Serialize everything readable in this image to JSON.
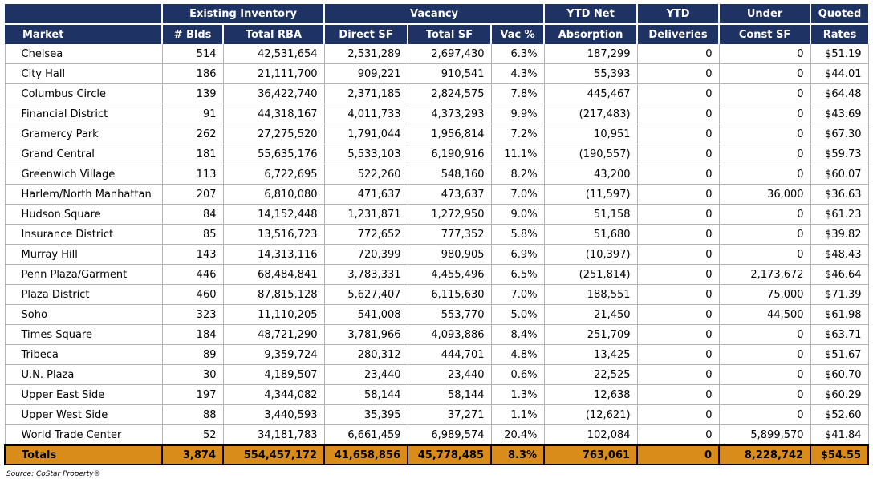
{
  "header": {
    "groups": [
      "Existing Inventory",
      "Vacancy",
      "YTD Net",
      "YTD",
      "Under",
      "Quoted"
    ],
    "columns": [
      "Market",
      "# Blds",
      "Total RBA",
      "Direct SF",
      "Total SF",
      "Vac %",
      "Absorption",
      "Deliveries",
      "Const SF",
      "Rates"
    ]
  },
  "rows": [
    [
      "Chelsea",
      "514",
      "42,531,654",
      "2,531,289",
      "2,697,430",
      "6.3%",
      "187,299",
      "0",
      "0",
      "$51.19"
    ],
    [
      "City Hall",
      "186",
      "21,111,700",
      "909,221",
      "910,541",
      "4.3%",
      "55,393",
      "0",
      "0",
      "$44.01"
    ],
    [
      "Columbus Circle",
      "139",
      "36,422,740",
      "2,371,185",
      "2,824,575",
      "7.8%",
      "445,467",
      "0",
      "0",
      "$64.48"
    ],
    [
      "Financial District",
      "91",
      "44,318,167",
      "4,011,733",
      "4,373,293",
      "9.9%",
      "(217,483)",
      "0",
      "0",
      "$43.69"
    ],
    [
      "Gramercy Park",
      "262",
      "27,275,520",
      "1,791,044",
      "1,956,814",
      "7.2%",
      "10,951",
      "0",
      "0",
      "$67.30"
    ],
    [
      "Grand Central",
      "181",
      "55,635,176",
      "5,533,103",
      "6,190,916",
      "11.1%",
      "(190,557)",
      "0",
      "0",
      "$59.73"
    ],
    [
      "Greenwich Village",
      "113",
      "6,722,695",
      "522,260",
      "548,160",
      "8.2%",
      "43,200",
      "0",
      "0",
      "$60.07"
    ],
    [
      "Harlem/North Manhattan",
      "207",
      "6,810,080",
      "471,637",
      "473,637",
      "7.0%",
      "(11,597)",
      "0",
      "36,000",
      "$36.63"
    ],
    [
      "Hudson Square",
      "84",
      "14,152,448",
      "1,231,871",
      "1,272,950",
      "9.0%",
      "51,158",
      "0",
      "0",
      "$61.23"
    ],
    [
      "Insurance District",
      "85",
      "13,516,723",
      "772,652",
      "777,352",
      "5.8%",
      "51,680",
      "0",
      "0",
      "$39.82"
    ],
    [
      "Murray Hill",
      "143",
      "14,313,116",
      "720,399",
      "980,905",
      "6.9%",
      "(10,397)",
      "0",
      "0",
      "$48.43"
    ],
    [
      "Penn Plaza/Garment",
      "446",
      "68,484,841",
      "3,783,331",
      "4,455,496",
      "6.5%",
      "(251,814)",
      "0",
      "2,173,672",
      "$46.64"
    ],
    [
      "Plaza District",
      "460",
      "87,815,128",
      "5,627,407",
      "6,115,630",
      "7.0%",
      "188,551",
      "0",
      "75,000",
      "$71.39"
    ],
    [
      "Soho",
      "323",
      "11,110,205",
      "541,008",
      "553,770",
      "5.0%",
      "21,450",
      "0",
      "44,500",
      "$61.98"
    ],
    [
      "Times Square",
      "184",
      "48,721,290",
      "3,781,966",
      "4,093,886",
      "8.4%",
      "251,709",
      "0",
      "0",
      "$63.71"
    ],
    [
      "Tribeca",
      "89",
      "9,359,724",
      "280,312",
      "444,701",
      "4.8%",
      "13,425",
      "0",
      "0",
      "$51.67"
    ],
    [
      "U.N. Plaza",
      "30",
      "4,189,507",
      "23,440",
      "23,440",
      "0.6%",
      "22,525",
      "0",
      "0",
      "$60.70"
    ],
    [
      "Upper East Side",
      "197",
      "4,344,082",
      "58,144",
      "58,144",
      "1.3%",
      "12,638",
      "0",
      "0",
      "$60.29"
    ],
    [
      "Upper West Side",
      "88",
      "3,440,593",
      "35,395",
      "37,271",
      "1.1%",
      "(12,621)",
      "0",
      "0",
      "$52.60"
    ],
    [
      "World Trade Center",
      "52",
      "34,181,783",
      "6,661,459",
      "6,989,574",
      "20.4%",
      "102,084",
      "0",
      "5,899,570",
      "$41.84"
    ]
  ],
  "totals": [
    "Totals",
    "3,874",
    "554,457,172",
    "41,658,856",
    "45,778,485",
    "8.3%",
    "763,061",
    "0",
    "8,228,742",
    "$54.55"
  ],
  "source": "Source: CoStar Property®",
  "colors": {
    "header_bg": "#1f3264",
    "totals_bg": "#d98c1a"
  }
}
